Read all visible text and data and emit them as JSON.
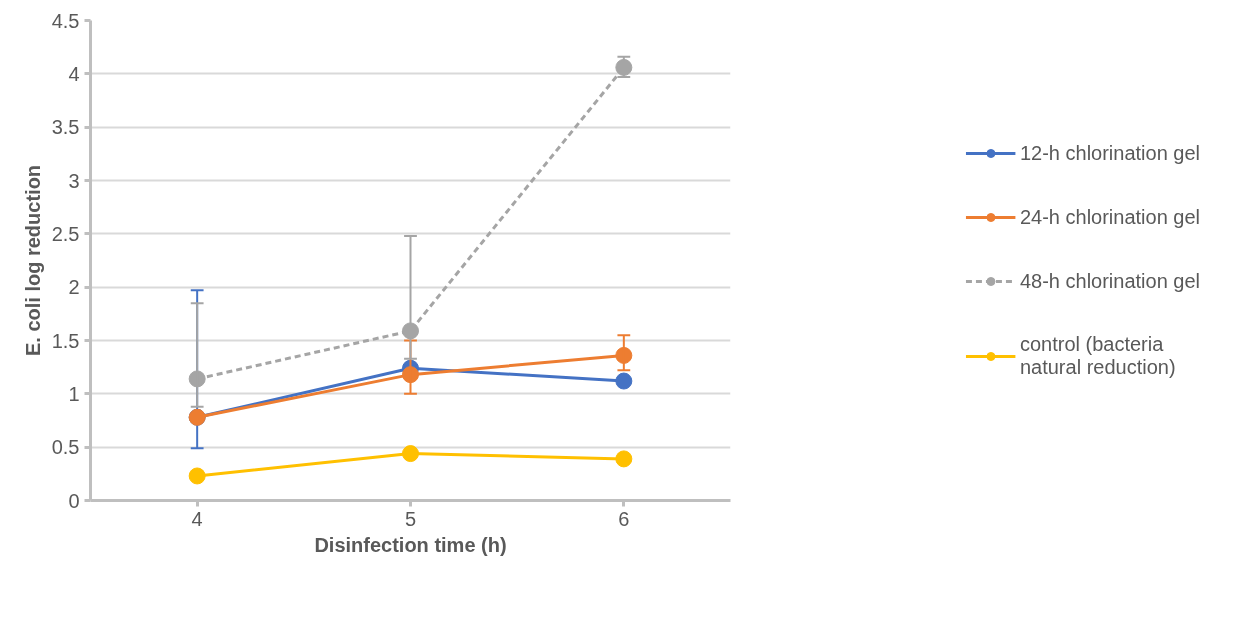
{
  "chart_data": {
    "type": "line",
    "xlabel": "Disinfection time (h)",
    "ylabel": "E. coli log reduction",
    "x": [
      4,
      5,
      6
    ],
    "xlim": [
      3.5,
      6.5
    ],
    "xticks": [
      4,
      5,
      6
    ],
    "ylim": [
      0,
      4.5
    ],
    "yticks": [
      0,
      0.5,
      1,
      1.5,
      2,
      2.5,
      3,
      3.5,
      4,
      4.5
    ],
    "grid": "y",
    "legend": "right",
    "marker": "circle",
    "series": [
      {
        "name": "12-h chlorination gel",
        "color": "#4472c4",
        "values": [
          0.78,
          1.24,
          1.12
        ],
        "errors": [
          [
            0.49,
            1.97
          ],
          null,
          null
        ]
      },
      {
        "name": "24-h chlorination gel",
        "color": "#ed7d31",
        "values": [
          0.78,
          1.18,
          1.36
        ],
        "errors": [
          null,
          [
            1.0,
            1.5
          ],
          [
            1.22,
            1.55
          ]
        ]
      },
      {
        "name": "48-h chlorination gel",
        "color": "#a5a5a5",
        "line_style": "dashed",
        "values": [
          1.14,
          1.59,
          4.06
        ],
        "errors": [
          [
            0.88,
            1.85
          ],
          [
            1.33,
            2.48
          ],
          [
            3.97,
            4.16
          ]
        ]
      },
      {
        "name": "control (bacteria natural reduction)",
        "color": "#ffc000",
        "values": [
          0.23,
          0.44,
          0.39
        ]
      }
    ]
  }
}
